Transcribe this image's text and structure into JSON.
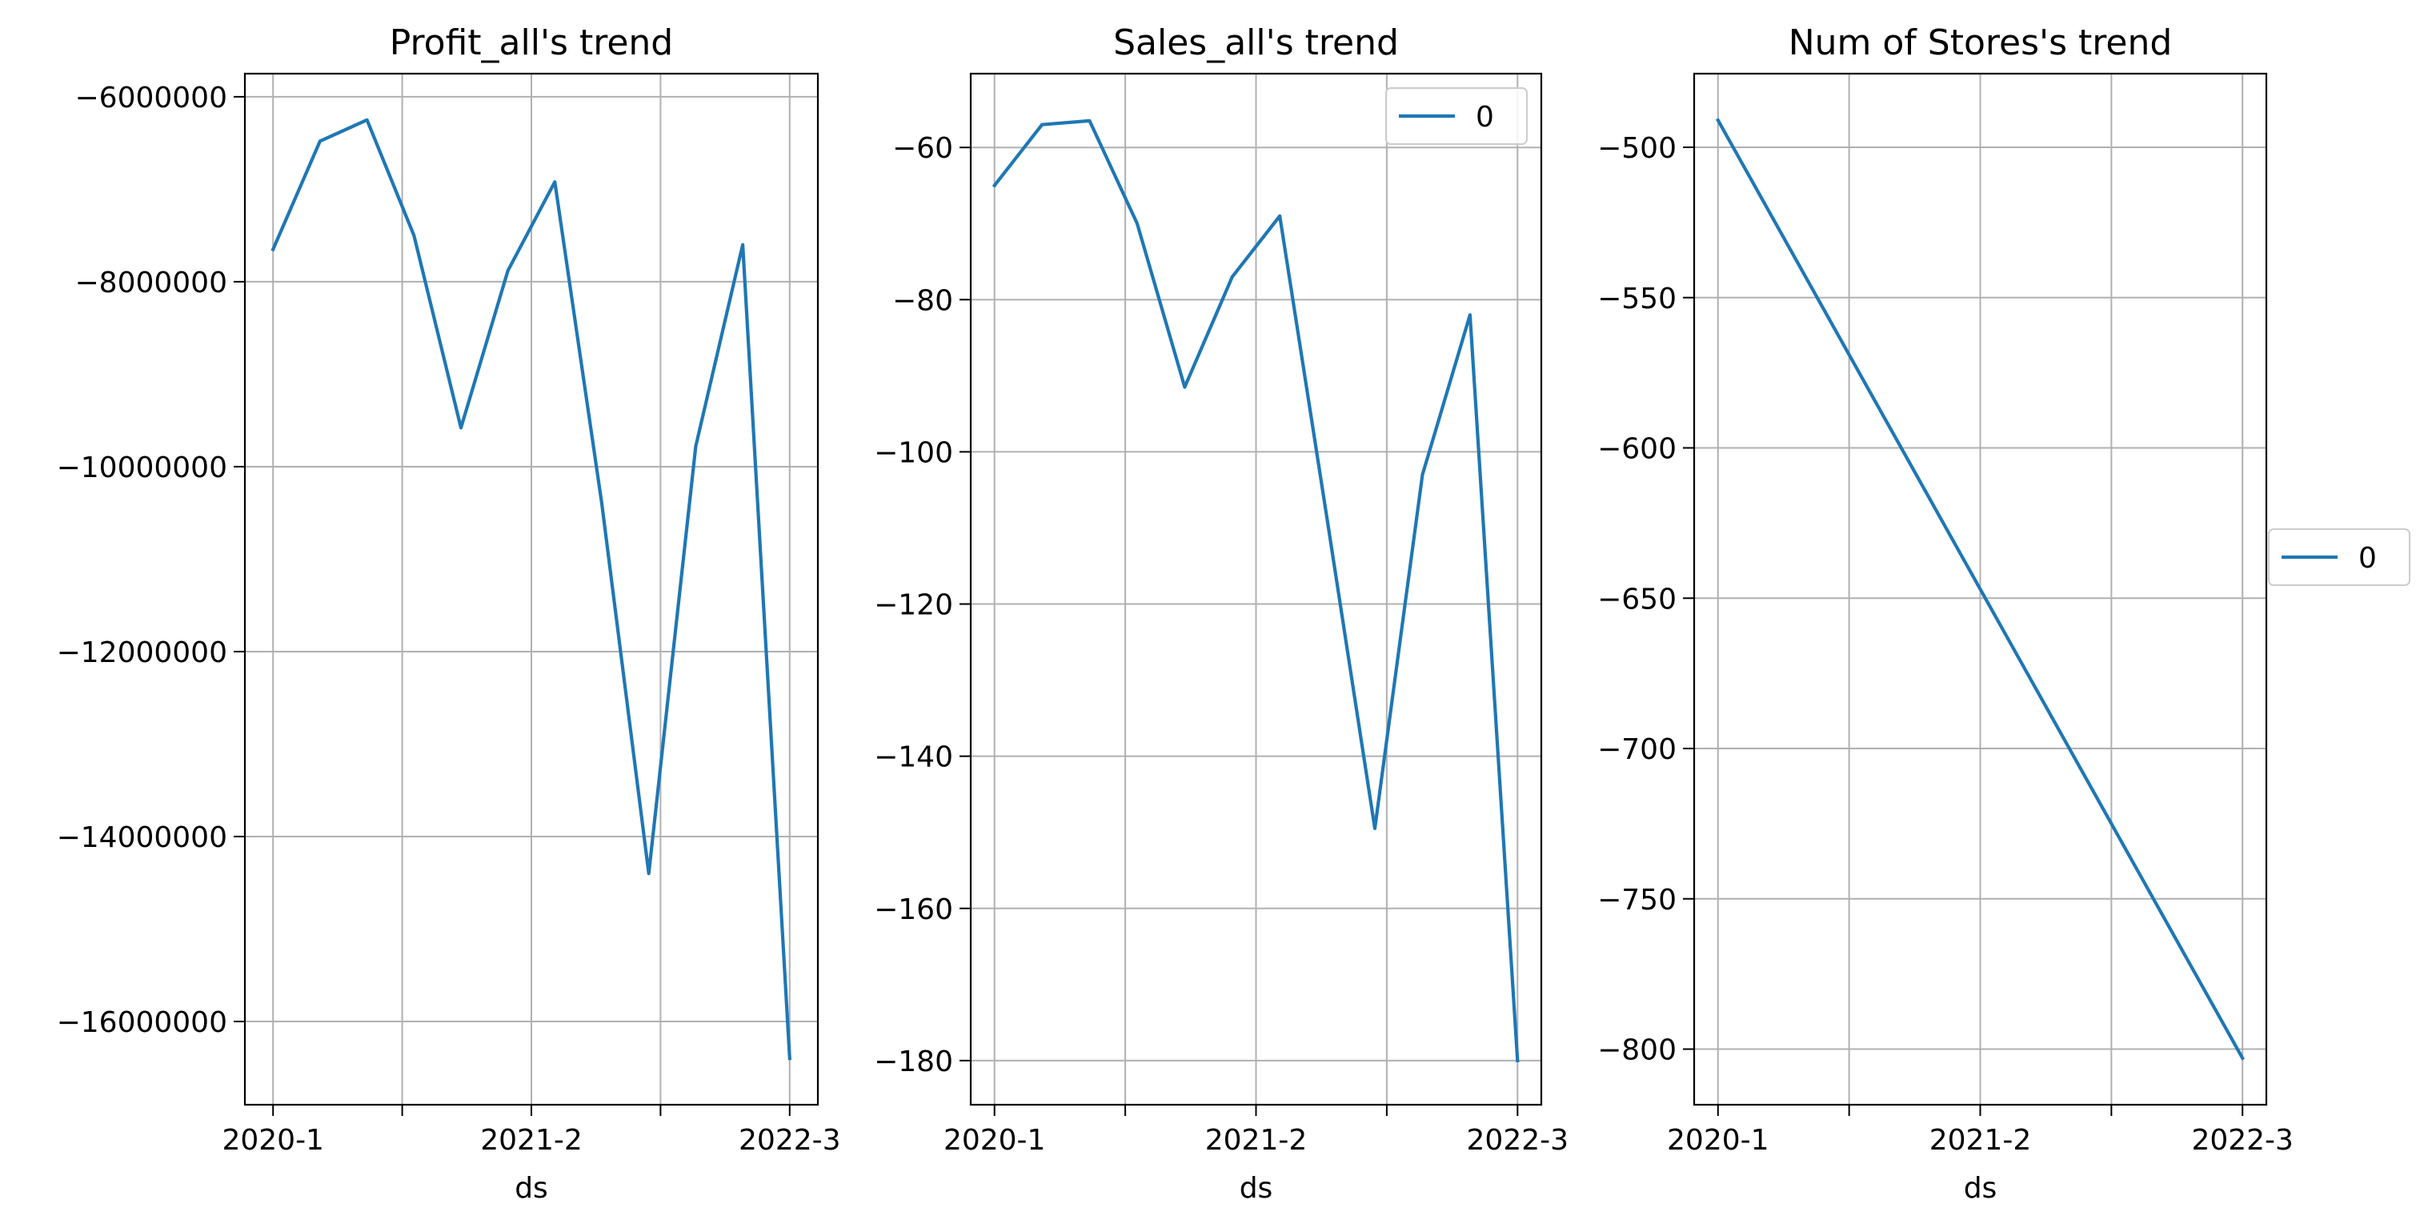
{
  "chart_data": [
    {
      "type": "line",
      "title": "Profit_all's trend",
      "xlabel": "ds",
      "ylabel": "",
      "x_tick_labels": [
        "2020-1",
        "",
        "2021-2",
        "",
        "2022-3"
      ],
      "y_ticks": [
        -6000000,
        -8000000,
        -10000000,
        -12000000,
        -14000000,
        -16000000
      ],
      "y_tick_labels": [
        "−6000000",
        "−8000000",
        "−10000000",
        "−12000000",
        "−14000000",
        "−16000000"
      ],
      "ylim": [
        -16900000,
        -5750000
      ],
      "x": [
        0,
        1,
        2,
        3,
        4,
        5,
        6,
        7,
        8,
        9,
        10,
        11
      ],
      "xlim": [
        -0.6,
        11.6
      ],
      "grid": true,
      "legend": null,
      "series": [
        {
          "name": "",
          "color": "#1f77b4",
          "values": [
            -7650000,
            -6480000,
            -6250000,
            -7500000,
            -9580000,
            -7880000,
            -6920000,
            -10400000,
            -14400000,
            -9780000,
            -7600000,
            -16400000
          ]
        }
      ]
    },
    {
      "type": "line",
      "title": "Sales_all's trend",
      "xlabel": "ds",
      "ylabel": "",
      "x_tick_labels": [
        "2020-1",
        "",
        "2021-2",
        "",
        "2022-3"
      ],
      "y_ticks": [
        -60,
        -80,
        -100,
        -120,
        -140,
        -160,
        -180
      ],
      "y_tick_labels": [
        "−60",
        "−80",
        "−100",
        "−120",
        "−140",
        "−160",
        "−180"
      ],
      "ylim": [
        -185.8,
        -50.3
      ],
      "x": [
        0,
        1,
        2,
        3,
        4,
        5,
        6,
        7,
        8,
        9,
        10,
        11
      ],
      "xlim": [
        -0.5,
        11.5
      ],
      "grid": true,
      "legend": {
        "entries": [
          "0"
        ],
        "location": "upper right"
      },
      "series": [
        {
          "name": "0",
          "color": "#1f77b4",
          "values": [
            -65,
            -57,
            -56.5,
            -70,
            -91.5,
            -77,
            -69,
            -109,
            -149.5,
            -103,
            -82,
            -180
          ]
        }
      ]
    },
    {
      "type": "line",
      "title": "Num of Stores's trend",
      "xlabel": "ds",
      "ylabel": "",
      "x_tick_labels": [
        "2020-1",
        "",
        "2021-2",
        "",
        "2022-3"
      ],
      "y_ticks": [
        -500,
        -550,
        -600,
        -650,
        -700,
        -750,
        -800
      ],
      "y_tick_labels": [
        "−500",
        "−550",
        "−600",
        "−650",
        "−700",
        "−750",
        "−800"
      ],
      "ylim": [
        -818.5,
        -475.5
      ],
      "x": [
        0,
        11
      ],
      "xlim": [
        -0.5,
        11.5
      ],
      "grid": true,
      "legend": {
        "entries": [
          "0"
        ],
        "location": "center right, outside plot"
      },
      "series": [
        {
          "name": "0",
          "color": "#1f77b4",
          "values": [
            -491,
            -803
          ]
        }
      ]
    }
  ]
}
